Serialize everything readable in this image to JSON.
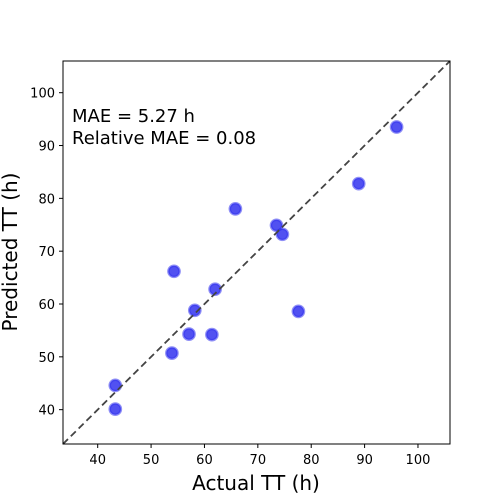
{
  "chart_data": {
    "type": "scatter",
    "xlabel": "Actual TT (h)",
    "ylabel": "Predicted TT (h)",
    "xlim": [
      33.5,
      106
    ],
    "ylim": [
      33.5,
      106
    ],
    "xticks": [
      40,
      50,
      60,
      70,
      80,
      90,
      100
    ],
    "yticks": [
      40,
      50,
      60,
      70,
      80,
      90,
      100
    ],
    "grid": false,
    "reference_line": "y = x (dashed)",
    "annotations": [
      "MAE = 5.27 h",
      "Relative MAE = 0.08"
    ],
    "points": [
      {
        "x": 43.3,
        "y": 44.6
      },
      {
        "x": 43.3,
        "y": 40.1
      },
      {
        "x": 53.9,
        "y": 50.7
      },
      {
        "x": 54.3,
        "y": 66.2
      },
      {
        "x": 57.1,
        "y": 54.3
      },
      {
        "x": 58.2,
        "y": 58.8
      },
      {
        "x": 61.4,
        "y": 54.2
      },
      {
        "x": 62.0,
        "y": 62.8
      },
      {
        "x": 65.8,
        "y": 78.0
      },
      {
        "x": 73.5,
        "y": 74.9
      },
      {
        "x": 74.6,
        "y": 73.2
      },
      {
        "x": 77.6,
        "y": 58.6
      },
      {
        "x": 88.9,
        "y": 82.8
      },
      {
        "x": 96.0,
        "y": 93.5
      }
    ],
    "colors": {
      "marker": "#3333ee",
      "reference_line": "#444444"
    }
  }
}
